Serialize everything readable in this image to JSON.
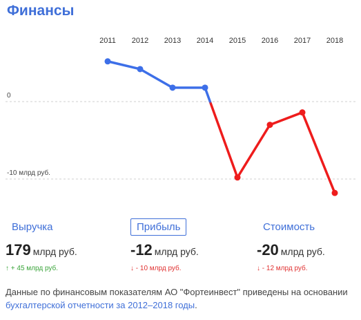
{
  "title": "Финансы",
  "colors": {
    "accent": "#3f6fd8",
    "positive_line": "#3d6fe8",
    "negative_line": "#ee1c1c",
    "up": "#3aa43a",
    "down": "#e03030"
  },
  "chart_data": {
    "type": "line",
    "x": [
      "2011",
      "2012",
      "2013",
      "2014",
      "2015",
      "2016",
      "2017",
      "2018"
    ],
    "series": [
      {
        "values": [
          5.2,
          4.2,
          1.8,
          1.8,
          -9.8,
          -3.0,
          -1.4,
          -11.8
        ]
      }
    ],
    "ytick_labels": [
      "0",
      "-10 млрд руб."
    ],
    "yticks": [
      0,
      -10
    ],
    "ylim": [
      -14,
      9
    ],
    "grid": "dashed at tick values"
  },
  "tabs": [
    {
      "label": "Выручка",
      "active": false
    },
    {
      "label": "Прибыль",
      "active": true
    },
    {
      "label": "Стоимость",
      "active": false
    }
  ],
  "metrics": [
    {
      "value": "179",
      "unit": "млрд руб.",
      "delta": "↑ + 45 млрд руб.",
      "direction": "up"
    },
    {
      "value": "-12",
      "unit": "млрд руб.",
      "delta": "↓ - 10 млрд руб.",
      "direction": "down"
    },
    {
      "value": "-20",
      "unit": "млрд руб.",
      "delta": "↓ - 12 млрд руб.",
      "direction": "down"
    }
  ],
  "note": {
    "text_before": "Данные по финансовым показателям АО \"Фортеинвест\" приведены на основании ",
    "link_text": "бухгалтерской отчетности за 2012–2018 годы",
    "text_after": "."
  }
}
